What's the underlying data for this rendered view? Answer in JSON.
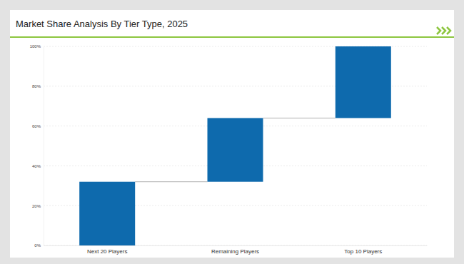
{
  "chart_data": {
    "type": "waterfall",
    "title": "Market Share Analysis By Tier Type, 2025",
    "categories": [
      "Next 20 Players",
      "Remaining Players",
      "Top 10 Players"
    ],
    "values": [
      32,
      32,
      36
    ],
    "color": "#0e6aad",
    "ylim": [
      0,
      100
    ],
    "yticks": [
      {
        "value": 0,
        "label": "0%"
      },
      {
        "value": 20,
        "label": "20%"
      },
      {
        "value": 40,
        "label": "40%"
      },
      {
        "value": 60,
        "label": "60%"
      },
      {
        "value": 80,
        "label": "80%"
      },
      {
        "value": 100,
        "label": "100%"
      }
    ],
    "grid": true
  }
}
